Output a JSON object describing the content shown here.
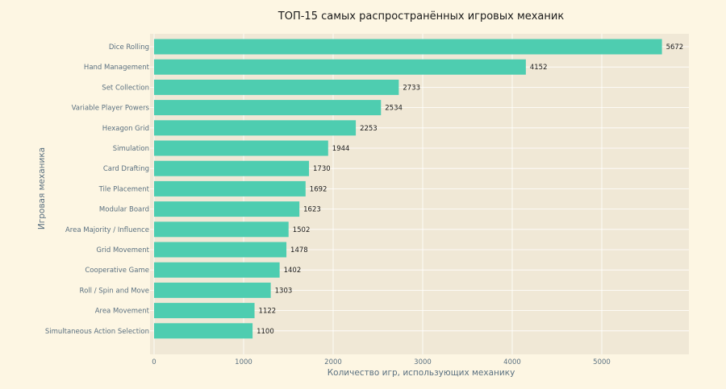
{
  "chart_data": {
    "type": "bar",
    "orientation": "horizontal",
    "title": "ТОП-15 самых распространённых игровых механик",
    "xlabel": "Количество игр, использующих механику",
    "ylabel": "Игровая механика",
    "categories": [
      "Dice Rolling",
      "Hand Management",
      "Set Collection",
      "Variable Player Powers",
      "Hexagon Grid",
      "Simulation",
      "Card Drafting",
      "Tile Placement",
      "Modular Board",
      "Area Majority / Influence",
      "Grid Movement",
      "Cooperative Game",
      "Roll / Spin and Move",
      "Area Movement",
      "Simultaneous Action Selection"
    ],
    "values": [
      5672,
      4152,
      2733,
      2534,
      2253,
      1944,
      1730,
      1692,
      1623,
      1502,
      1478,
      1402,
      1303,
      1122,
      1100
    ],
    "xticks": [
      0,
      1000,
      2000,
      3000,
      4000,
      5000
    ],
    "xlim": [
      0,
      5955
    ],
    "grid": true,
    "colors": {
      "bar": "#4ecdb0",
      "plot_background": "#f0e8d6",
      "page_background": "#fdf6e3",
      "grid": "#ffffff",
      "label_text": "#5a7080"
    }
  }
}
